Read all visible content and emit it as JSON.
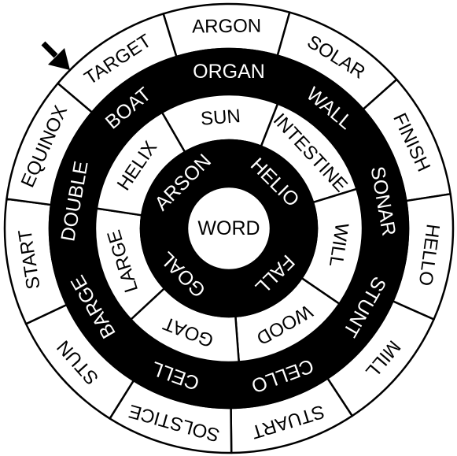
{
  "puzzle": {
    "center_word": "WORD",
    "colors": {
      "ink": "#000000",
      "paper": "#ffffff"
    },
    "pointer_icon": "arrow-pointer-icon",
    "rings": [
      {
        "id": "inner",
        "dark": true,
        "labels": [
          "HELIO",
          "FALL",
          "GOAL",
          "ARSON"
        ]
      },
      {
        "id": "middle",
        "dark": false,
        "labels": [
          "SUN",
          "INTESTINE",
          "WILL",
          "WOOD",
          "GOAT",
          "LARGE",
          "HELIX"
        ]
      },
      {
        "id": "third",
        "dark": true,
        "labels": [
          "ORGAN",
          "WALL",
          "SONAR",
          "STUNT",
          "CELLO",
          "CELL",
          "BARGE",
          "DOUBLE",
          "BOAT"
        ]
      },
      {
        "id": "outer",
        "dark": false,
        "labels": [
          "ARGON",
          "SOLAR",
          "FINISH",
          "HELLO",
          "MILL",
          "STUART",
          "SOLSTICE",
          "STUN",
          "START",
          "EQUINOX",
          "TARGET"
        ]
      }
    ]
  }
}
